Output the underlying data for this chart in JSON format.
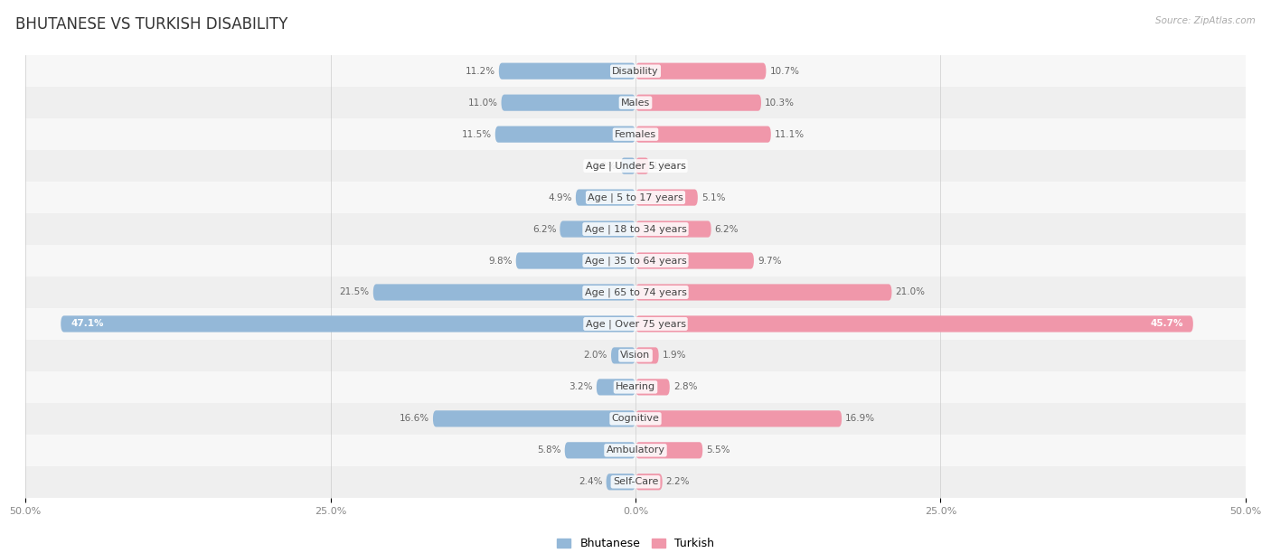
{
  "title": "BHUTANESE VS TURKISH DISABILITY",
  "source": "Source: ZipAtlas.com",
  "categories": [
    "Disability",
    "Males",
    "Females",
    "Age | Under 5 years",
    "Age | 5 to 17 years",
    "Age | 18 to 34 years",
    "Age | 35 to 64 years",
    "Age | 65 to 74 years",
    "Age | Over 75 years",
    "Vision",
    "Hearing",
    "Cognitive",
    "Ambulatory",
    "Self-Care"
  ],
  "bhutanese": [
    11.2,
    11.0,
    11.5,
    1.2,
    4.9,
    6.2,
    9.8,
    21.5,
    47.1,
    2.0,
    3.2,
    16.6,
    5.8,
    2.4
  ],
  "turkish": [
    10.7,
    10.3,
    11.1,
    1.1,
    5.1,
    6.2,
    9.7,
    21.0,
    45.7,
    1.9,
    2.8,
    16.9,
    5.5,
    2.2
  ],
  "bhutanese_color": "#94b8d8",
  "turkish_color": "#f097aa",
  "axis_max": 50.0,
  "background_color": "#ffffff",
  "row_colors": [
    "#f7f7f7",
    "#efefef"
  ],
  "bar_height": 0.52,
  "title_fontsize": 12,
  "label_fontsize": 8,
  "tick_fontsize": 8,
  "value_fontsize": 7.5,
  "legend_fontsize": 9
}
